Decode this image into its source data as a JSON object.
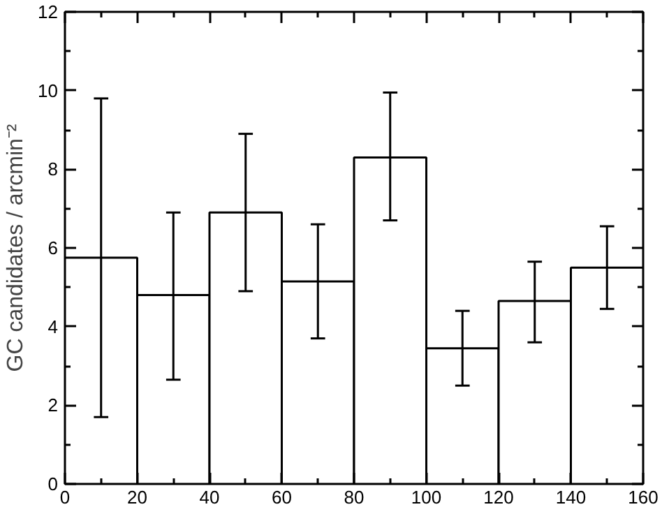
{
  "chart_data": {
    "type": "histogram",
    "ylabel": "GC candidates / arcmin⁻²",
    "bins": [
      0,
      20,
      40,
      60,
      80,
      100,
      120,
      140,
      160
    ],
    "values": [
      5.75,
      4.8,
      6.9,
      5.15,
      8.3,
      3.45,
      4.65,
      5.5
    ],
    "errors": [
      [
        1.7,
        9.8
      ],
      [
        2.65,
        6.9
      ],
      [
        4.9,
        8.9
      ],
      [
        3.7,
        6.6
      ],
      [
        6.7,
        9.95
      ],
      [
        2.5,
        4.4
      ],
      [
        3.6,
        5.65
      ],
      [
        4.45,
        6.55
      ]
    ],
    "color": "#ffffff",
    "xlim": [
      0,
      160
    ],
    "ylim": [
      0,
      12
    ],
    "xticks": [
      0,
      20,
      40,
      60,
      80,
      100,
      120,
      140,
      160
    ],
    "yticks": [
      0,
      2,
      4,
      6,
      8,
      10,
      12
    ],
    "grid": false
  }
}
